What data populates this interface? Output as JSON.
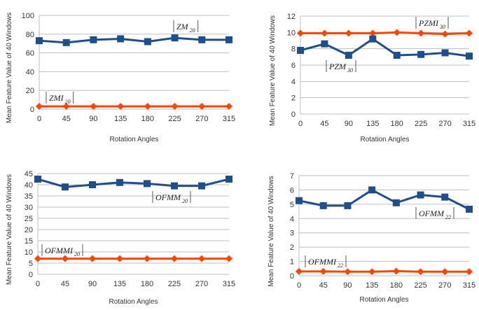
{
  "chart_data": [
    {
      "type": "line",
      "categories": [
        "0",
        "45",
        "90",
        "135",
        "180",
        "225",
        "270",
        "315"
      ],
      "xlabel": "Rotation Angles",
      "ylabel": "Mean Feature Value of 40 Windows",
      "ylim": [
        0,
        100
      ],
      "yticks": [
        0,
        20,
        40,
        60,
        80,
        100
      ],
      "grid": "horizontal",
      "series": [
        {
          "name": "|ZM20|",
          "label_main": "ZM",
          "label_sub": "20",
          "color": "#1f4e8c",
          "marker": "square",
          "values": [
            73,
            71,
            74,
            75,
            72,
            76,
            74,
            74
          ]
        },
        {
          "name": "|ZMI20|",
          "label_main": "ZMI",
          "label_sub": "20",
          "color": "#ff4500",
          "marker": "diamond",
          "values": [
            3,
            3,
            3,
            3,
            3,
            3,
            3,
            3
          ]
        }
      ]
    },
    {
      "type": "line",
      "categories": [
        "0",
        "45",
        "90",
        "135",
        "180",
        "225",
        "270",
        "315"
      ],
      "xlabel": "Rotation Angles",
      "ylabel": "Mean Feature Value of 40 Windows",
      "ylim": [
        0,
        12
      ],
      "yticks": [
        0,
        2,
        4,
        6,
        8,
        10,
        12
      ],
      "grid": "horizontal",
      "series": [
        {
          "name": "|PZMI30|",
          "label_main": "PZMI",
          "label_sub": "30",
          "color": "#ff4500",
          "marker": "diamond",
          "values": [
            9.9,
            9.9,
            9.9,
            9.9,
            10.0,
            9.9,
            9.8,
            9.9
          ]
        },
        {
          "name": "|PZM30|",
          "label_main": "PZM",
          "label_sub": "30",
          "color": "#1f4e8c",
          "marker": "square",
          "values": [
            7.8,
            8.6,
            7.2,
            9.2,
            7.2,
            7.3,
            7.5,
            7.1
          ]
        }
      ]
    },
    {
      "type": "line",
      "categories": [
        "0",
        "45",
        "90",
        "135",
        "180",
        "225",
        "270",
        "315"
      ],
      "xlabel": "Rotation Angles",
      "ylabel": "Mean Feature Value of 40 Windows",
      "ylim": [
        0,
        45
      ],
      "yticks": [
        0,
        5,
        10,
        15,
        20,
        25,
        30,
        35,
        40,
        45
      ],
      "grid": "horizontal",
      "series": [
        {
          "name": "|OFMM20|",
          "label_main": "OFMM",
          "label_sub": "20",
          "color": "#1f4e8c",
          "marker": "square",
          "values": [
            42.5,
            39,
            40,
            41,
            40.5,
            39.5,
            39.5,
            42.5
          ]
        },
        {
          "name": "|OFMMI20|",
          "label_main": "OFMMI",
          "label_sub": "20",
          "color": "#ff4500",
          "marker": "diamond",
          "values": [
            7,
            7,
            7,
            7,
            7,
            7,
            7,
            7
          ]
        }
      ]
    },
    {
      "type": "line",
      "categories": [
        "0",
        "45",
        "90",
        "135",
        "180",
        "225",
        "270",
        "315"
      ],
      "xlabel": "Rotation Angles",
      "ylabel": "Mean Feature Value of 40 Windows",
      "ylim": [
        0,
        7
      ],
      "yticks": [
        0,
        1,
        2,
        3,
        4,
        5,
        6,
        7
      ],
      "grid": "horizontal",
      "series": [
        {
          "name": "|OFMM22|",
          "label_main": "OFMM",
          "label_sub": "22",
          "color": "#1f4e8c",
          "marker": "square",
          "values": [
            5.25,
            4.9,
            4.9,
            6.0,
            5.1,
            5.65,
            5.5,
            4.65
          ]
        },
        {
          "name": "|OFMMI22|",
          "label_main": "OFMMI",
          "label_sub": "22",
          "color": "#ff4500",
          "marker": "diamond",
          "values": [
            0.3,
            0.3,
            0.28,
            0.28,
            0.32,
            0.28,
            0.28,
            0.28
          ]
        }
      ]
    }
  ]
}
